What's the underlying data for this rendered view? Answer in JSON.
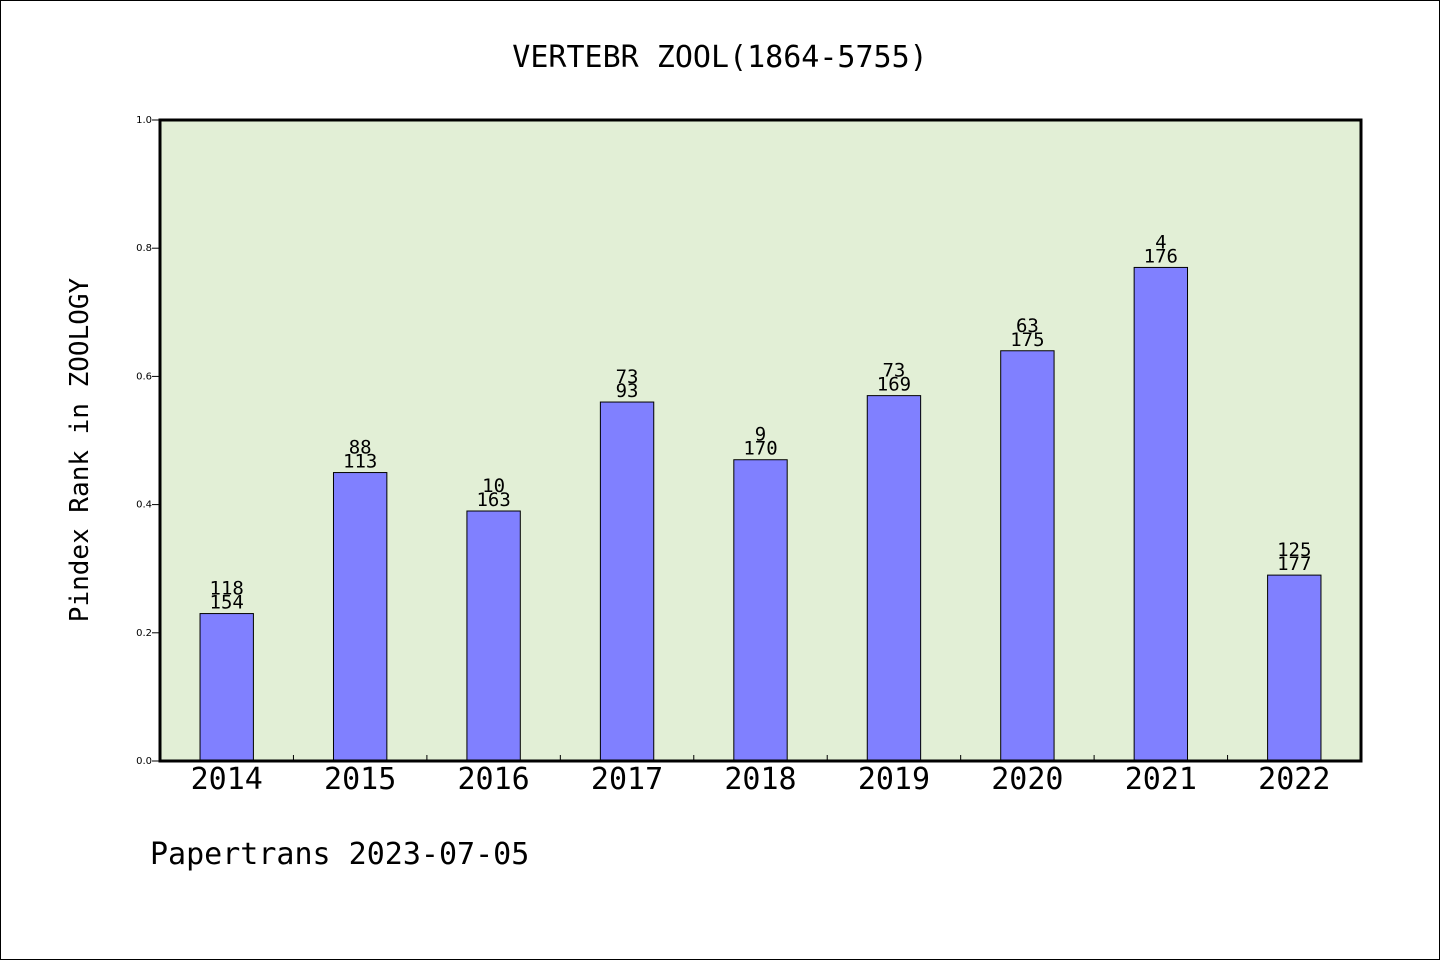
{
  "chart_data": {
    "type": "bar",
    "title": "VERTEBR ZOOL(1864-5755)",
    "ylabel": "Pindex Rank in ZOOLOGY",
    "xlabel": "",
    "footer": "Papertrans 2023-07-05",
    "categories": [
      "2014",
      "2015",
      "2016",
      "2017",
      "2018",
      "2019",
      "2020",
      "2021",
      "2022"
    ],
    "values": [
      0.23,
      0.45,
      0.39,
      0.56,
      0.47,
      0.57,
      0.64,
      0.77,
      0.29
    ],
    "labels_top": [
      "118",
      "88",
      "10",
      "73",
      "9",
      "73",
      "63",
      "4",
      "125"
    ],
    "labels_bottom": [
      "154",
      "113",
      "163",
      "93",
      "170",
      "169",
      "175",
      "176",
      "177"
    ],
    "ylim": [
      0.0,
      1.0
    ],
    "yticks": [
      "0.0",
      "0.2",
      "0.4",
      "0.6",
      "0.8",
      "1.0"
    ],
    "grid": false,
    "colors": {
      "plot_background": "#e2efd6",
      "bar_fill": "#8080ff",
      "bar_edge": "#000000"
    }
  }
}
